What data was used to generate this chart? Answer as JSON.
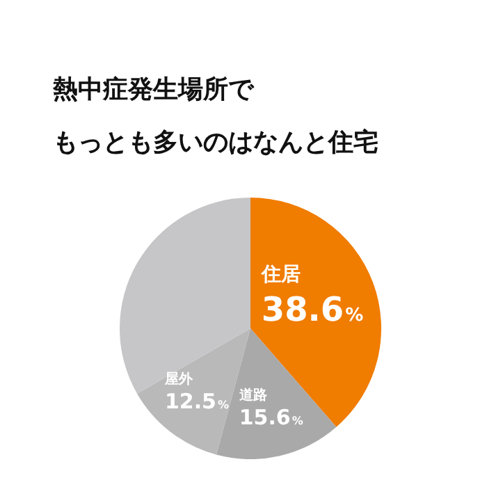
{
  "chart_data": {
    "type": "pie",
    "title": "熱中症発生場所で",
    "subtitle": "もっとも多いのはなんと住宅",
    "categories": [
      "住居",
      "道路",
      "屋外",
      null
    ],
    "values": [
      38.6,
      15.6,
      12.5,
      33.3
    ],
    "value_labels": [
      "38.6%",
      "15.6%",
      "12.5%",
      null
    ],
    "colors": [
      "#f07c00",
      "#a9a9aa",
      "#b9b9ba",
      "#c6c6c8"
    ],
    "legend": false
  }
}
